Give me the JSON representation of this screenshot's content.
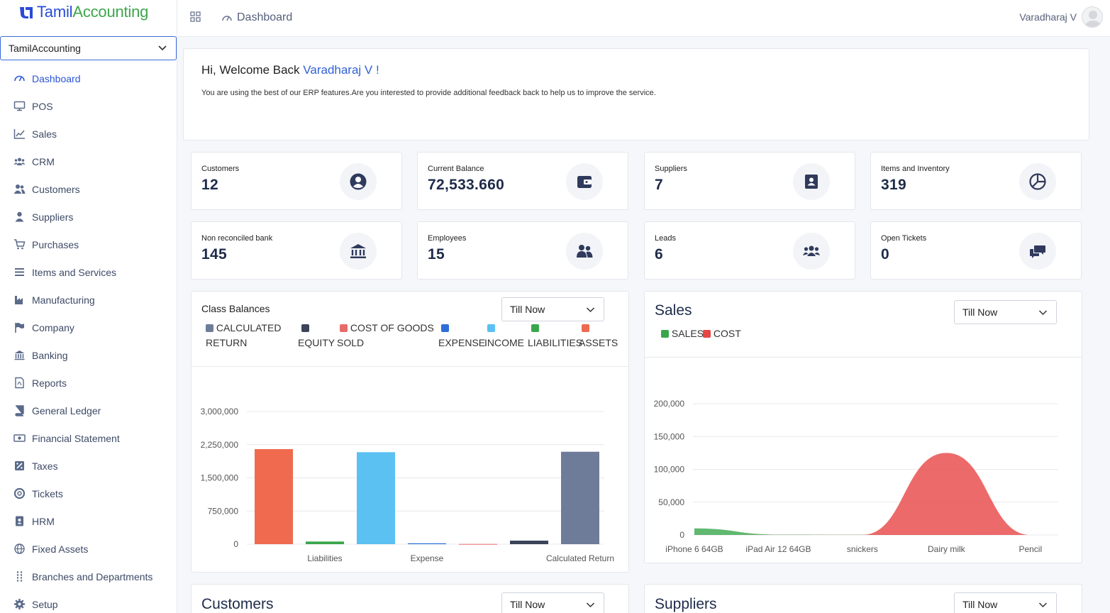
{
  "app": {
    "logo_part1": "Tamil",
    "logo_part2": "Accounting",
    "company": "TamilAccounting",
    "accent": "#2a55d4"
  },
  "sidebar": {
    "items": [
      {
        "label": "Dashboard",
        "icon": "gauge-icon"
      },
      {
        "label": "POS",
        "icon": "monitor-icon"
      },
      {
        "label": "Sales",
        "icon": "line-chart-icon"
      },
      {
        "label": "CRM",
        "icon": "users-group-icon"
      },
      {
        "label": "Customers",
        "icon": "user-friends-icon"
      },
      {
        "label": "Suppliers",
        "icon": "user-icon"
      },
      {
        "label": "Purchases",
        "icon": "cart-icon"
      },
      {
        "label": "Items and Services",
        "icon": "list-icon"
      },
      {
        "label": "Manufacturing",
        "icon": "industry-icon"
      },
      {
        "label": "Company",
        "icon": "flag-icon"
      },
      {
        "label": "Banking",
        "icon": "bank-icon"
      },
      {
        "label": "Reports",
        "icon": "pdf-icon"
      },
      {
        "label": "General Ledger",
        "icon": "book-icon"
      },
      {
        "label": "Financial Statement",
        "icon": "money-bill-icon"
      },
      {
        "label": "Taxes",
        "icon": "tax-icon"
      },
      {
        "label": "Tickets",
        "icon": "lifering-icon"
      },
      {
        "label": "HRM",
        "icon": "id-badge-icon"
      },
      {
        "label": "Fixed Assets",
        "icon": "globe-icon"
      },
      {
        "label": "Branches and Departments",
        "icon": "grip-icon"
      },
      {
        "label": "Setup",
        "icon": "gear-icon"
      }
    ]
  },
  "topbar": {
    "breadcrumb": "Dashboard",
    "user_name": "Varadharaj V"
  },
  "welcome": {
    "greeting": "Hi, Welcome Back",
    "name": "Varadharaj V !",
    "message": "You are using the best of our ERP features.Are you interested to provide additional feedback back to help us to improve the service."
  },
  "stats": [
    {
      "label": "Customers",
      "value": "12",
      "icon": "user-circle-icon"
    },
    {
      "label": "Current Balance",
      "value": "72,533.660",
      "icon": "wallet-icon"
    },
    {
      "label": "Suppliers",
      "value": "7",
      "icon": "address-card-icon"
    },
    {
      "label": "Items and Inventory",
      "value": "319",
      "icon": "pie-icon"
    },
    {
      "label": "Non reconciled bank",
      "value": "145",
      "icon": "bank-icon"
    },
    {
      "label": "Employees",
      "value": "15",
      "icon": "user-friends-icon"
    },
    {
      "label": "Leads",
      "value": "6",
      "icon": "users-group-icon"
    },
    {
      "label": "Open Tickets",
      "value": "0",
      "icon": "comments-icon"
    }
  ],
  "class_balances": {
    "title": "Class Balances",
    "filter": "Till Now",
    "legend": [
      {
        "label": "CALCULATED RETURN",
        "color": "#6f7c99"
      },
      {
        "label": "EQUITY",
        "color": "#3b4459"
      },
      {
        "label": "COST OF GOODS SOLD",
        "color": "#e86b6b"
      },
      {
        "label": "EXPENSE",
        "color": "#2e6fd6"
      },
      {
        "label": "INCOME",
        "color": "#5bc0f2"
      },
      {
        "label": "LIABILITIES",
        "color": "#3aa64c"
      },
      {
        "label": "ASSETS",
        "color": "#ef6a4f"
      }
    ]
  },
  "sales_panel": {
    "title": "Sales",
    "filter": "Till Now",
    "legend": [
      {
        "label": "SALES",
        "color": "#3aa64c"
      },
      {
        "label": "COST",
        "color": "#e84545"
      }
    ]
  },
  "customers_panel": {
    "title": "Customers",
    "filter": "Till Now"
  },
  "suppliers_panel": {
    "title": "Suppliers",
    "filter": "Till Now"
  },
  "chart_data": [
    {
      "type": "bar",
      "title": "Class Balances",
      "categories": [
        "Assets",
        "Liabilities",
        "Income",
        "Expense",
        "Cost of Goods Sold",
        "Equity",
        "Calculated Return"
      ],
      "tick_labels": [
        "Liabilities",
        "Expense",
        "Calculated Return"
      ],
      "values": [
        2150000,
        60000,
        2080000,
        20000,
        5000,
        80000,
        2090000
      ],
      "colors": [
        "#ef6a4f",
        "#3aa64c",
        "#5bc0f2",
        "#2e6fd6",
        "#e86b6b",
        "#3b4459",
        "#6f7c99"
      ],
      "yticks": [
        "0",
        "750,000",
        "1,500,000",
        "2,250,000",
        "3,000,000"
      ],
      "ylim": [
        0,
        3000000
      ]
    },
    {
      "type": "area",
      "title": "Sales",
      "categories": [
        "iPhone 6 64GB",
        "iPad Air 12 64GB",
        "snickers",
        "Dairy milk",
        "Pencil"
      ],
      "yticks": [
        "0",
        "50,000",
        "100,000",
        "150,000",
        "200,000"
      ],
      "ylim": [
        0,
        200000
      ],
      "series": [
        {
          "name": "SALES",
          "color": "#3aa64c",
          "values": [
            10000,
            500,
            300,
            400,
            0
          ]
        },
        {
          "name": "COST",
          "color": "#e84545",
          "values": [
            0,
            200,
            200,
            125000,
            0
          ]
        }
      ]
    }
  ]
}
